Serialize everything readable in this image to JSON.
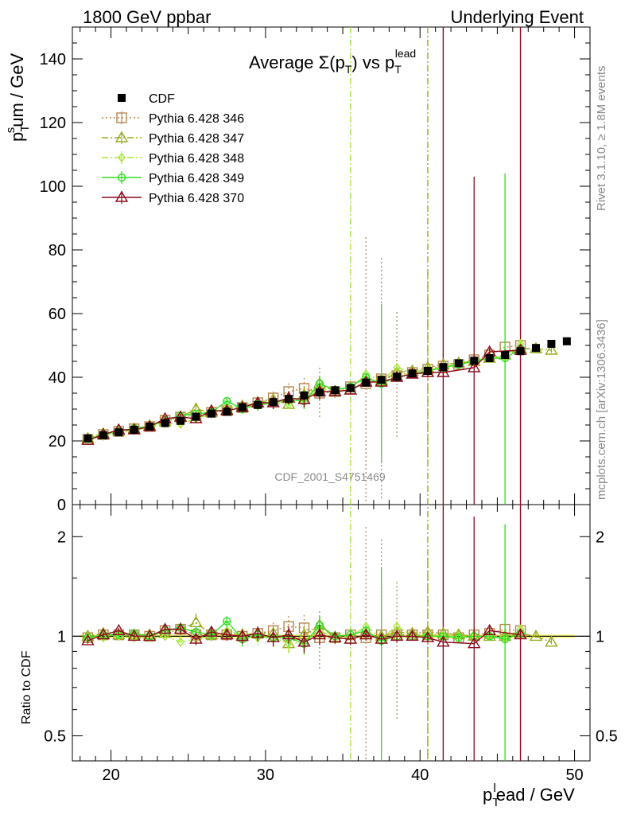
{
  "header": {
    "left": "1800 GeV ppbar",
    "right": "Underlying Event"
  },
  "plot_title": {
    "main": "Average Σ(p",
    "sub1": "T",
    "mid": ") vs p",
    "sub2": "T",
    "sup2": "lead"
  },
  "ylabel": {
    "main": "p",
    "sub": "T",
    "sup": "s",
    "rest": "um / GeV"
  },
  "xlabel": {
    "main": "p",
    "sub": "T",
    "sup": "l",
    "rest": "ead / GeV"
  },
  "ratio_ylabel": "Ratio to CDF",
  "side_right_top": "Rivet 3.1.10, ≥ 1.8M events",
  "side_right_bottom": "mcplots.cern.ch [arXiv:1306.3436]",
  "watermark": "CDF_2001_S4751469",
  "colors": {
    "cdf": "#000000",
    "p346": "#b8864b",
    "p347": "#9aaa1a",
    "p348": "#a8e63a",
    "p349": "#33dd22",
    "p370": "#8b0a1e",
    "band": "#ffff66"
  },
  "chart_data": [
    {
      "type": "scatter",
      "panel": "main",
      "xlim": [
        17.5,
        51
      ],
      "ylim": [
        0,
        150
      ],
      "yticks": [
        0,
        20,
        40,
        60,
        80,
        100,
        120,
        140
      ],
      "legend_position": "top-left",
      "series": [
        {
          "name": "CDF",
          "key": "cdf",
          "marker": "filled-square",
          "style": "none",
          "x": [
            18.5,
            19.5,
            20.5,
            21.5,
            22.5,
            23.5,
            24.5,
            25.5,
            26.5,
            27.5,
            28.5,
            29.5,
            30.5,
            31.5,
            32.5,
            33.5,
            34.5,
            35.5,
            36.5,
            37.5,
            38.5,
            39.5,
            40.5,
            41.5,
            42.5,
            43.5,
            44.5,
            45.5,
            46.5,
            47.5,
            48.5,
            49.5
          ],
          "y": [
            20.8,
            21.8,
            22.7,
            23.5,
            24.5,
            25.6,
            26.3,
            27.6,
            28.6,
            29.2,
            30.6,
            31.3,
            32.2,
            33.2,
            34.3,
            35.2,
            35.9,
            36.6,
            38.3,
            39.2,
            40.2,
            41.2,
            42.0,
            43.2,
            44.4,
            45.2,
            46.0,
            47.0,
            48.2,
            49.2,
            50.5,
            51.3
          ]
        },
        {
          "name": "Pythia 6.428 346",
          "key": "p346",
          "marker": "open-square",
          "style": "dotted",
          "x": [
            18.5,
            19.5,
            20.5,
            21.5,
            22.5,
            23.5,
            24.5,
            25.5,
            26.5,
            27.5,
            28.5,
            29.5,
            30.5,
            31.5,
            32.5,
            33.5,
            34.5,
            35.5,
            36.5,
            37.5,
            38.5,
            39.5,
            40.5,
            41.5,
            42.5,
            43.5,
            44.5,
            45.5,
            46.5
          ],
          "y": [
            20.5,
            22.0,
            23.0,
            23.8,
            24.5,
            26.5,
            27.5,
            28.0,
            29.0,
            29.5,
            30.5,
            32.0,
            33.5,
            35.5,
            36.5,
            35.0,
            35.5,
            37.0,
            38.0,
            39.5,
            40.5,
            41.5,
            42.5,
            43.5,
            44.0,
            45.5,
            47.0,
            49.5,
            50.0
          ],
          "err": [
            0.4,
            0.4,
            0.5,
            0.5,
            0.6,
            0.8,
            1.0,
            1.2,
            1.2,
            1.3,
            1.5,
            1.7,
            2.0,
            2.6,
            3.3,
            8.0,
            2.0,
            1.5,
            46.0,
            38.0,
            20.0,
            1.0,
            1.0,
            1.0,
            1.0,
            1.0,
            1.0,
            1.0,
            1.0
          ]
        },
        {
          "name": "Pythia 6.428 347",
          "key": "p347",
          "marker": "open-triangle",
          "style": "dash-dot",
          "x": [
            18.5,
            19.5,
            20.5,
            21.5,
            22.5,
            23.5,
            24.5,
            25.5,
            26.5,
            27.5,
            28.5,
            29.5,
            30.5,
            31.5,
            32.5,
            33.5,
            34.5,
            35.5,
            36.5,
            37.5,
            38.5,
            39.5,
            40.5,
            41.5,
            42.5,
            43.5,
            44.5,
            45.5,
            46.5,
            47.5,
            48.5
          ],
          "y": [
            20.8,
            22.3,
            23.0,
            23.8,
            24.8,
            26.0,
            27.5,
            30.0,
            29.0,
            29.8,
            31.0,
            32.0,
            33.0,
            31.5,
            34.5,
            38.0,
            35.5,
            36.0,
            38.5,
            39.0,
            41.5,
            42.0,
            43.0,
            44.0,
            44.5,
            45.0,
            46.0,
            47.0,
            49.0,
            49.0,
            48.5
          ],
          "err": [
            0.4,
            0.4,
            0.5,
            0.5,
            0.6,
            0.8,
            1.0,
            2.0,
            1.2,
            1.3,
            1.5,
            1.7,
            2.0,
            2.0,
            2.5,
            2.5,
            1.5,
            1.2,
            1.2,
            1.2,
            1.2,
            1.2,
            30.0,
            1.2,
            1.2,
            1.2,
            1.2,
            1.2,
            1.2,
            1.2,
            1.2
          ]
        },
        {
          "name": "Pythia 6.428 348",
          "key": "p348",
          "marker": "open-diamond",
          "style": "dash-dot",
          "x": [
            18.5,
            19.5,
            20.5,
            21.5,
            22.5,
            23.5,
            24.5,
            25.5,
            26.5,
            27.5,
            28.5,
            29.5,
            30.5,
            31.5,
            32.5,
            33.5,
            34.5,
            35.5,
            36.5,
            37.5,
            38.5,
            39.5,
            40.5,
            41.5,
            42.5,
            43.5,
            44.5,
            45.5,
            46.5
          ],
          "y": [
            20.6,
            21.5,
            22.8,
            23.3,
            24.3,
            25.5,
            25.3,
            27.0,
            28.5,
            30.5,
            31.0,
            31.0,
            32.0,
            31.5,
            33.0,
            36.5,
            35.5,
            36.5,
            41.0,
            39.0,
            43.0,
            41.5,
            42.5,
            43.0,
            44.5,
            45.5,
            46.0,
            46.5,
            50.5
          ],
          "err": [
            0.4,
            0.4,
            0.5,
            0.5,
            0.6,
            0.8,
            1.0,
            1.2,
            1.2,
            1.3,
            1.5,
            1.7,
            2.0,
            2.0,
            2.5,
            2.5,
            1.5,
            1.2,
            1.5,
            1.5,
            1.5,
            1.2,
            1.2,
            1.2,
            1.2,
            1.2,
            1.2,
            1.2,
            1.2
          ]
        },
        {
          "name": "Pythia 6.428 349",
          "key": "p349",
          "marker": "open-circle-cross",
          "style": "solid",
          "x": [
            18.5,
            19.5,
            20.5,
            21.5,
            22.5,
            23.5,
            24.5,
            25.5,
            26.5,
            27.5,
            28.5,
            29.5,
            30.5,
            31.5,
            32.5,
            33.5,
            34.5,
            35.5,
            36.5,
            37.5,
            38.5,
            39.5,
            40.5,
            41.5,
            42.5,
            43.5,
            44.5,
            45.5,
            46.5
          ],
          "y": [
            20.6,
            22.0,
            23.0,
            24.0,
            24.5,
            26.5,
            28.0,
            28.5,
            29.0,
            32.5,
            30.0,
            31.5,
            32.0,
            33.0,
            32.5,
            38.0,
            36.0,
            37.0,
            40.0,
            38.0,
            40.0,
            41.0,
            42.0,
            43.0,
            44.0,
            45.0,
            46.0,
            46.0,
            49.0
          ],
          "err": [
            0.4,
            0.4,
            0.5,
            0.5,
            0.6,
            0.8,
            1.0,
            1.2,
            1.2,
            1.3,
            1.5,
            1.7,
            2.0,
            2.0,
            2.5,
            2.5,
            1.5,
            1.2,
            1.5,
            25.0,
            1.5,
            1.2,
            1.2,
            1.2,
            1.2,
            1.2,
            1.2,
            58.0,
            1.2
          ]
        },
        {
          "name": "Pythia 6.428 370",
          "key": "p370",
          "marker": "open-triangle",
          "style": "solid",
          "x": [
            18.5,
            19.5,
            20.5,
            21.5,
            22.5,
            23.5,
            24.5,
            25.5,
            26.5,
            27.5,
            28.5,
            29.5,
            30.5,
            31.5,
            32.5,
            33.5,
            34.5,
            35.5,
            36.5,
            37.5,
            38.5,
            39.5,
            40.5,
            41.5,
            43.5,
            44.5,
            46.5
          ],
          "y": [
            20.2,
            22.0,
            23.5,
            23.5,
            24.5,
            27.0,
            27.5,
            27.0,
            29.5,
            29.5,
            30.5,
            32.0,
            32.0,
            33.5,
            33.0,
            35.5,
            35.5,
            36.0,
            38.5,
            38.5,
            40.0,
            41.0,
            41.5,
            41.5,
            43.0,
            48.0,
            48.5
          ],
          "err": [
            0.4,
            0.4,
            0.5,
            0.5,
            0.6,
            0.8,
            1.0,
            1.2,
            1.2,
            1.3,
            1.5,
            1.7,
            2.0,
            2.0,
            2.5,
            2.5,
            1.5,
            1.2,
            1.2,
            1.2,
            1.2,
            1.2,
            1.2,
            1.2,
            60.0,
            1.2,
            1.2
          ]
        }
      ],
      "vertical_lines": [
        {
          "key": "p348",
          "x": 35.5,
          "style": "dash-dot"
        },
        {
          "key": "p347",
          "x": 40.5,
          "style": "dash-dot"
        },
        {
          "key": "p370",
          "x": 41.5,
          "style": "solid"
        },
        {
          "key": "p370",
          "x": 46.5,
          "style": "solid"
        }
      ]
    },
    {
      "type": "scatter",
      "panel": "ratio",
      "xlim": [
        17.5,
        51
      ],
      "ylim": [
        0.42,
        2.5
      ],
      "scale": "log",
      "yticks": [
        0.5,
        1,
        2
      ],
      "xticks": [
        20,
        30,
        40,
        50
      ],
      "ylabel": "Ratio to CDF",
      "series": [
        {
          "key": "p346",
          "y": [
            0.99,
            1.01,
            1.01,
            1.01,
            1.0,
            1.04,
            1.05,
            1.01,
            1.01,
            1.01,
            1.0,
            1.02,
            1.04,
            1.07,
            1.06,
            0.99,
            0.99,
            1.01,
            0.99,
            1.01,
            1.01,
            1.01,
            1.01,
            1.01,
            0.99,
            1.01,
            1.02,
            1.05,
            1.04
          ],
          "err": [
            0.02,
            0.02,
            0.02,
            0.02,
            0.02,
            0.03,
            0.04,
            0.04,
            0.04,
            0.04,
            0.05,
            0.05,
            0.06,
            0.08,
            0.1,
            0.2,
            0.05,
            0.04,
            1.15,
            0.95,
            0.45,
            0.03,
            0.03,
            0.03,
            0.03,
            0.03,
            0.03,
            0.03,
            0.03
          ]
        },
        {
          "key": "p347",
          "y": [
            1.0,
            1.02,
            1.01,
            1.01,
            1.01,
            1.02,
            1.05,
            1.1,
            1.01,
            1.02,
            1.01,
            1.02,
            1.02,
            0.95,
            1.01,
            1.08,
            0.99,
            0.98,
            1.01,
            1.0,
            1.03,
            1.02,
            1.03,
            1.02,
            1.01,
            1.0,
            1.0,
            1.0,
            1.02,
            1.0,
            0.96
          ],
          "err": [
            0.02,
            0.02,
            0.02,
            0.02,
            0.02,
            0.03,
            0.04,
            0.07,
            0.04,
            0.04,
            0.05,
            0.05,
            0.06,
            0.06,
            0.07,
            0.07,
            0.04,
            0.04,
            0.04,
            0.04,
            0.04,
            0.03,
            0.7,
            0.03,
            0.03,
            0.03,
            0.03,
            0.03,
            0.03,
            0.03,
            0.03
          ]
        },
        {
          "key": "p348",
          "y": [
            0.99,
            0.99,
            1.0,
            0.99,
            0.99,
            1.0,
            0.96,
            0.98,
            1.0,
            1.04,
            1.01,
            0.99,
            0.99,
            0.95,
            0.96,
            1.04,
            0.99,
            1.0,
            1.07,
            0.99,
            1.07,
            1.01,
            1.01,
            1.0,
            1.0,
            1.0,
            1.0,
            0.99,
            1.05
          ],
          "err": [
            0.02,
            0.02,
            0.02,
            0.02,
            0.02,
            0.03,
            0.04,
            0.04,
            0.04,
            0.04,
            0.05,
            0.05,
            0.06,
            0.06,
            0.07,
            0.07,
            0.04,
            0.04,
            0.04,
            0.04,
            0.04,
            0.03,
            0.03,
            0.03,
            0.03,
            0.03,
            0.03,
            0.03,
            0.03
          ]
        },
        {
          "key": "p349",
          "y": [
            0.99,
            1.01,
            1.01,
            1.02,
            1.0,
            1.04,
            1.06,
            1.03,
            1.01,
            1.11,
            0.98,
            1.01,
            0.99,
            0.99,
            0.95,
            1.08,
            1.0,
            1.01,
            1.04,
            0.97,
            1.0,
            1.0,
            1.0,
            1.0,
            0.99,
            1.0,
            1.0,
            0.98,
            1.02
          ],
          "err": [
            0.02,
            0.02,
            0.02,
            0.02,
            0.02,
            0.03,
            0.04,
            0.04,
            0.04,
            0.04,
            0.05,
            0.05,
            0.06,
            0.06,
            0.07,
            0.07,
            0.04,
            0.04,
            0.04,
            0.65,
            0.04,
            0.03,
            0.03,
            0.03,
            0.03,
            0.03,
            0.03,
            1.2,
            0.03
          ]
        },
        {
          "key": "p370",
          "y": [
            0.97,
            1.01,
            1.04,
            1.0,
            1.0,
            1.05,
            1.05,
            0.98,
            1.03,
            1.01,
            1.0,
            1.02,
            0.99,
            1.01,
            0.96,
            1.01,
            0.99,
            0.98,
            1.01,
            0.98,
            1.0,
            1.0,
            0.99,
            0.96,
            0.95,
            1.04,
            1.01
          ],
          "err": [
            0.02,
            0.02,
            0.02,
            0.02,
            0.02,
            0.03,
            0.04,
            0.04,
            0.04,
            0.04,
            0.05,
            0.05,
            0.06,
            0.06,
            0.07,
            0.07,
            0.04,
            0.04,
            0.04,
            0.04,
            0.04,
            0.03,
            0.03,
            0.03,
            1.35,
            0.03,
            0.03
          ]
        }
      ]
    }
  ]
}
